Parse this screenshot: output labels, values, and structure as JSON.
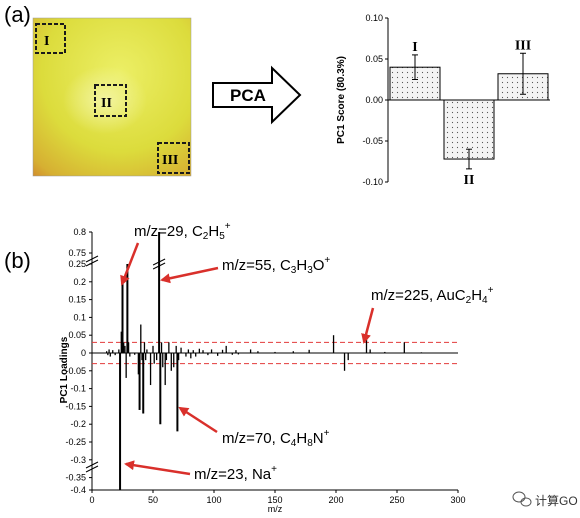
{
  "panel_a_label": "(a)",
  "panel_b_label": "(b)",
  "arrow_label": "PCA",
  "sample_image": {
    "regions": [
      "I",
      "II",
      "III"
    ]
  },
  "watermark": "计算GO",
  "colors": {
    "sample_yellow": "#e3e34a",
    "sample_orange": "#d9862c",
    "bar_fill": "#f2f2f2",
    "ref_line": "#e33b3b",
    "annotation_arrow": "#d9302b"
  },
  "chart_data": [
    {
      "type": "bar",
      "categories": [
        "I",
        "II",
        "III"
      ],
      "values": [
        0.04,
        -0.072,
        0.032
      ],
      "errors": [
        0.015,
        0.012,
        0.025
      ],
      "ylabel": "PC1 Score (80.3%)",
      "ylim": [
        -0.1,
        0.1
      ],
      "yticks": [
        "0.10",
        "0.05",
        "0.00",
        "-0.05",
        "-0.10"
      ],
      "bar_pattern": "dotted",
      "grid": false
    },
    {
      "type": "bar",
      "xlabel": "m/z",
      "ylabel": "PC1 Loadings",
      "xlim": [
        0,
        300
      ],
      "xticks": [
        "0",
        "50",
        "100",
        "150",
        "200",
        "250",
        "300"
      ],
      "yticks": [
        "0.8",
        "0.75",
        "0.25",
        "0.2",
        "0.15",
        "0.1",
        "0.05",
        "0",
        "-0.05",
        "-0.1",
        "-0.15",
        "-0.2",
        "-0.25",
        "-0.3",
        "-0.35",
        "-0.4"
      ],
      "axis_break": true,
      "reference_lines": [
        0.03,
        -0.03
      ],
      "x": [
        12,
        13,
        14,
        15,
        17,
        19,
        22,
        23,
        24,
        25,
        26,
        27,
        28,
        29,
        30,
        31,
        35,
        38,
        39,
        40,
        41,
        42,
        43,
        44,
        45,
        48,
        50,
        51,
        53,
        55,
        56,
        57,
        58,
        60,
        61,
        63,
        65,
        67,
        69,
        70,
        71,
        73,
        77,
        79,
        81,
        83,
        85,
        88,
        91,
        95,
        98,
        103,
        107,
        110,
        115,
        118,
        120,
        130,
        136,
        150,
        165,
        178,
        198,
        207,
        210,
        225,
        228,
        240,
        256,
        270,
        281
      ],
      "values": [
        0.005,
        -0.006,
        0.01,
        -0.01,
        0.008,
        -0.006,
        0.01,
        -0.4,
        0.06,
        0.2,
        0.03,
        0.02,
        -0.07,
        0.25,
        0.03,
        -0.01,
        -0.005,
        -0.06,
        -0.16,
        0.08,
        -0.02,
        -0.17,
        0.03,
        -0.02,
        0.01,
        -0.09,
        0.02,
        -0.03,
        -0.02,
        0.8,
        -0.2,
        0.03,
        -0.04,
        -0.09,
        -0.02,
        0.03,
        -0.05,
        -0.04,
        0.02,
        -0.22,
        -0.02,
        0.015,
        -0.01,
        0.01,
        -0.015,
        0.008,
        -0.01,
        0.012,
        0.008,
        -0.006,
        0.01,
        -0.008,
        0.009,
        0.02,
        -0.005,
        0.008,
        -0.004,
        0.01,
        0.005,
        0.003,
        0.005,
        0.009,
        0.05,
        -0.05,
        -0.02,
        0.045,
        0.01,
        0.003,
        0.03,
        0.002,
        0.001
      ],
      "annotations": [
        {
          "label": "m/z=29, C2H5+",
          "prefix": "m/z=29, C",
          "sub1": "2",
          "mid1": "H",
          "sub2": "5",
          "sup": "+"
        },
        {
          "label": "m/z=55, C3H3O+",
          "prefix": "m/z=55, C",
          "sub1": "3",
          "mid1": "H",
          "sub2": "3",
          "mid2": "O",
          "sup": "+"
        },
        {
          "label": "m/z=225, AuC2H4+",
          "prefix": "m/z=225, AuC",
          "sub1": "2",
          "mid1": "H",
          "sub2": "4",
          "sup": "+"
        },
        {
          "label": "m/z=70, C4H8N+",
          "prefix": "m/z=70, C",
          "sub1": "4",
          "mid1": "H",
          "sub2": "8",
          "mid2": "N",
          "sup": "+"
        },
        {
          "label": "m/z=23, Na+",
          "prefix": "m/z=23, Na",
          "sup": "+"
        }
      ]
    }
  ]
}
